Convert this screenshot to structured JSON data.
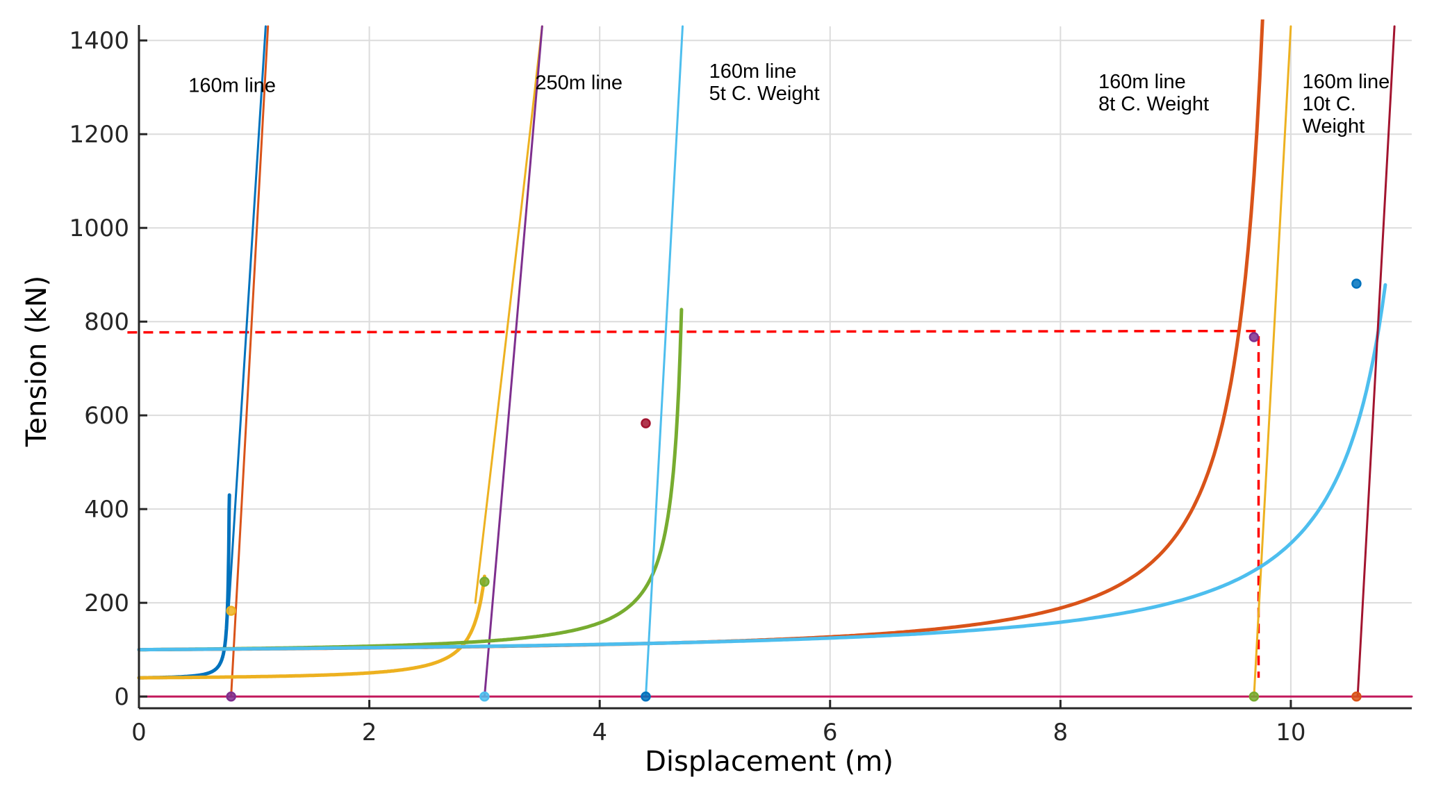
{
  "chart_data": {
    "type": "line",
    "title": "",
    "xlabel": "Displacement (m)",
    "ylabel": "Tension (kN)",
    "xlim": [
      0,
      11.05
    ],
    "ylim": [
      -25,
      1430
    ],
    "grid": true,
    "x_ticks": [
      0,
      2,
      4,
      6,
      8,
      10
    ],
    "y_ticks": [
      0,
      200,
      400,
      600,
      800,
      1000,
      1200,
      1400
    ],
    "annotations": [
      {
        "lines": [
          "160m line"
        ],
        "x": 0.43,
        "y": 1290
      },
      {
        "lines": [
          "250m line"
        ],
        "x": 3.44,
        "y": 1296
      },
      {
        "lines": [
          "160m line",
          "5t C. Weight"
        ],
        "x": 4.95,
        "y": 1320
      },
      {
        "lines": [
          "160m line",
          "8t C. Weight"
        ],
        "x": 8.33,
        "y": 1298
      },
      {
        "lines": [
          "160m line",
          "10t C.",
          "Weight"
        ],
        "x": 10.1,
        "y": 1298
      }
    ],
    "series": [
      {
        "kind": "curve",
        "color": "#0072BD",
        "x0": 0,
        "y0": 40,
        "xa": 0.8,
        "A": 1.2,
        "n": 1.4,
        "xmax": 0.795,
        "ymax": 230
      },
      {
        "kind": "line",
        "color": "#0072BD",
        "points": [
          [
            0.78,
            190
          ],
          [
            1.1,
            1430
          ]
        ]
      },
      {
        "kind": "line",
        "color": "#D95319",
        "points": [
          [
            0.8,
            0
          ],
          [
            1.12,
            1430
          ]
        ]
      },
      {
        "kind": "curve",
        "color": "#EDB120",
        "x0": 0,
        "y0": 40,
        "xa": 3.15,
        "A": 17,
        "n": 1.35,
        "xmax": 3.0,
        "ymax": 340
      },
      {
        "kind": "line",
        "color": "#EDB120",
        "points": [
          [
            2.92,
            200
          ],
          [
            3.3,
            1000
          ],
          [
            3.5,
            1430
          ]
        ]
      },
      {
        "kind": "line",
        "color": "#7E2F8E",
        "points": [
          [
            3.0,
            0
          ],
          [
            3.5,
            1430
          ]
        ]
      },
      {
        "kind": "curve",
        "color": "#77AC30",
        "x0": 0,
        "y0": 100,
        "xa": 4.8,
        "A": 52,
        "n": 1.1,
        "xmax": 4.71,
        "ymax": 1430
      },
      {
        "kind": "line",
        "color": "#4DBEEE",
        "points": [
          [
            4.4,
            0
          ],
          [
            4.72,
            1430
          ]
        ]
      },
      {
        "kind": "curve",
        "color": "#D95319",
        "x0": 0,
        "y0": 100,
        "xa": 10.1,
        "A": 290,
        "n": 1.45,
        "xmax": 9.98,
        "ymax": 1430
      },
      {
        "kind": "line",
        "color": "#EDB120",
        "points": [
          [
            9.68,
            0
          ],
          [
            10.0,
            1430
          ]
        ]
      },
      {
        "kind": "curve",
        "color": "#4DBEEE",
        "x0": 0,
        "y0": 100,
        "xa": 11.4,
        "A": 380,
        "n": 1.35,
        "xmax": 10.82,
        "ymax": 1430
      },
      {
        "kind": "line",
        "color": "#A2142F",
        "points": [
          [
            10.58,
            0
          ],
          [
            10.9,
            1430
          ]
        ]
      },
      {
        "kind": "line",
        "color": "#C2185B",
        "points": [
          [
            0,
            0
          ],
          [
            11.05,
            0
          ]
        ]
      }
    ],
    "markers": [
      {
        "x": 0.8,
        "y": 183,
        "color": "#EDB120"
      },
      {
        "x": 0.8,
        "y": 0,
        "color": "#7E2F8E"
      },
      {
        "x": 3.0,
        "y": 245,
        "color": "#77AC30"
      },
      {
        "x": 3.0,
        "y": 0,
        "color": "#4DBEEE"
      },
      {
        "x": 4.4,
        "y": 583,
        "color": "#A2142F"
      },
      {
        "x": 4.4,
        "y": 0,
        "color": "#0072BD"
      },
      {
        "x": 9.68,
        "y": 767,
        "color": "#7E2F8E"
      },
      {
        "x": 9.68,
        "y": 0,
        "color": "#77AC30"
      },
      {
        "x": 10.57,
        "y": 881,
        "color": "#0072BD"
      },
      {
        "x": 10.57,
        "y": 0,
        "color": "#D95319"
      }
    ],
    "reference_lines": [
      {
        "color": "#FF0000",
        "style": "dashed",
        "points": [
          [
            -0.1,
            777
          ],
          [
            9.7,
            780
          ],
          [
            9.72,
            770
          ],
          [
            9.72,
            40
          ]
        ]
      }
    ],
    "colors": {
      "axis": "#262626",
      "grid": "#DCDCDC",
      "reference": "#FF0000"
    }
  }
}
